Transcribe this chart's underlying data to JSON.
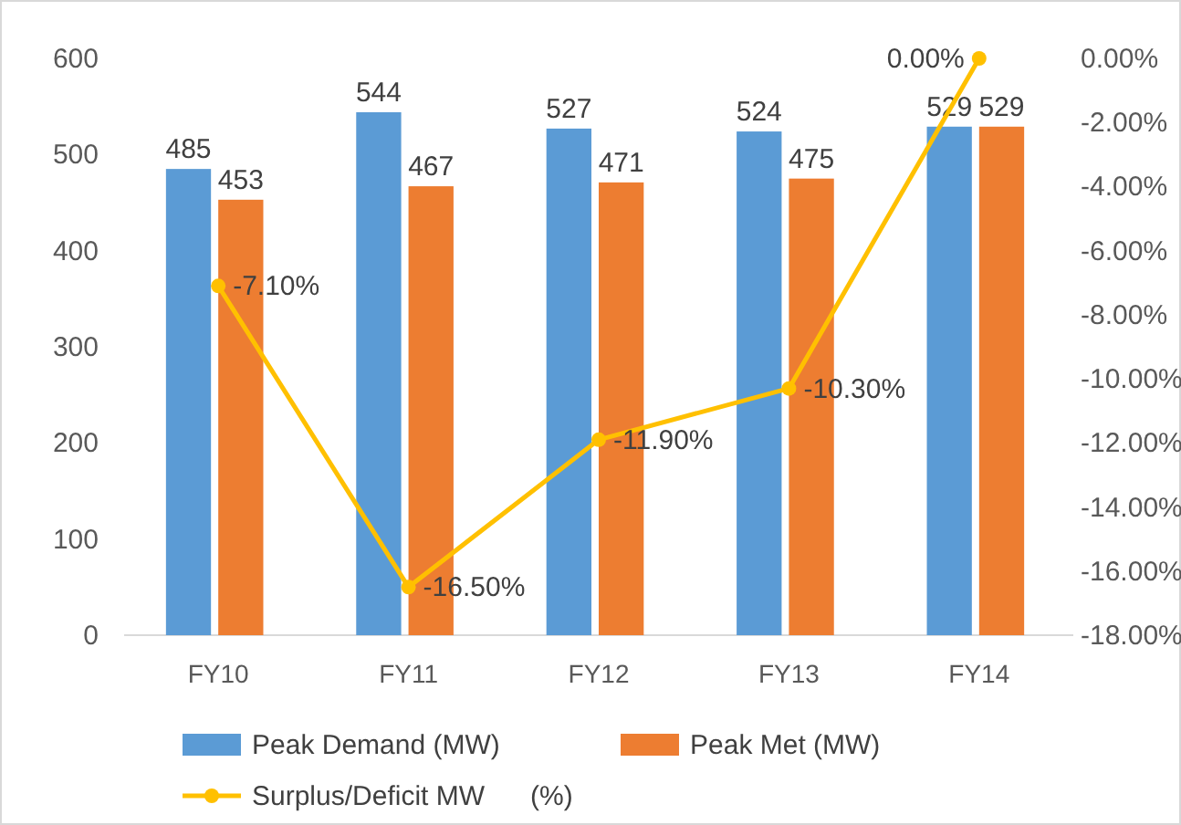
{
  "chart_data": {
    "type": "bar",
    "categories": [
      "FY10",
      "FY11",
      "FY12",
      "FY13",
      "FY14"
    ],
    "series": [
      {
        "name": "Peak Demand (MW)",
        "color": "#5b9bd5",
        "values": [
          485,
          544,
          527,
          524,
          529
        ]
      },
      {
        "name": "Peak Met (MW)",
        "color": "#ed7d31",
        "values": [
          453,
          467,
          471,
          475,
          529
        ]
      },
      {
        "name": "Surplus/Deficit MW      (%)",
        "color": "#ffc000",
        "type": "line",
        "axis": "y2",
        "marker": "circle",
        "values": [
          -7.1,
          -16.5,
          -11.9,
          -10.3,
          0
        ],
        "value_labels": [
          "-7.10%",
          "-16.50%",
          "-11.90%",
          "-10.30%",
          "0.00%"
        ]
      }
    ],
    "data_labels": true,
    "ylim": [
      0,
      600
    ],
    "yticks": [
      0,
      100,
      200,
      300,
      400,
      500,
      600
    ],
    "y2lim": [
      -18,
      0
    ],
    "y2ticks": [
      {
        "value": 0,
        "label": "0.00%"
      },
      {
        "value": -2,
        "label": "-2.00%"
      },
      {
        "value": -4,
        "label": "-4.00%"
      },
      {
        "value": -6,
        "label": "-6.00%"
      },
      {
        "value": -8,
        "label": "-8.00%"
      },
      {
        "value": -10,
        "label": "-10.00%"
      },
      {
        "value": -12,
        "label": "-12.00%"
      },
      {
        "value": -14,
        "label": "-14.00%"
      },
      {
        "value": -16,
        "label": "-16.00%"
      },
      {
        "value": -18,
        "label": "-18.00%"
      }
    ],
    "legend": "bottom"
  }
}
